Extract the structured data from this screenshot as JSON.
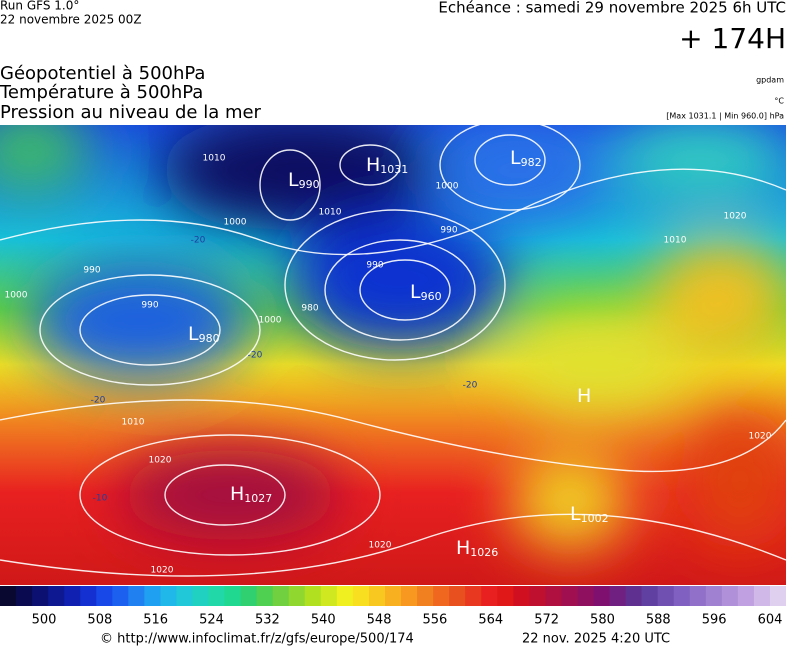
{
  "header": {
    "run": "Run GFS 1.0°",
    "run_date": "22 novembre 2025 00Z",
    "valid": "Echéance : samedi 29 novembre 2025 6h UTC",
    "lead": "+ 174H"
  },
  "fields": [
    "Géopotentiel à 500hPa",
    "Température à 500hPa",
    "Pression au niveau de la mer"
  ],
  "units": {
    "geo": "gpdam",
    "temp": "°C",
    "pressure": "[Max 1031.1 | Min 960.0] hPa"
  },
  "centers": [
    {
      "letter": "L",
      "value": "990"
    },
    {
      "letter": "H",
      "value": "1031"
    },
    {
      "letter": "L",
      "value": "982"
    },
    {
      "letter": "L",
      "value": "960"
    },
    {
      "letter": "L",
      "value": "980"
    },
    {
      "letter": "H",
      "value": "1027"
    },
    {
      "letter": "H",
      "value": "1026"
    },
    {
      "letter": "L",
      "value": "1002"
    },
    {
      "letter": "H"
    }
  ],
  "isobar_labels": [
    "1010",
    "1000",
    "990",
    "1010",
    "1000",
    "990",
    "980",
    "990",
    "1000",
    "1010",
    "1020",
    "1020",
    "1020",
    "1020",
    "1010",
    "1020",
    "1000",
    "990"
  ],
  "temp_labels": [
    "-20",
    "-20",
    "-20",
    "-20",
    "-10"
  ],
  "colorbar": [
    "500",
    "508",
    "516",
    "524",
    "532",
    "540",
    "548",
    "556",
    "564",
    "572",
    "580",
    "588",
    "596",
    "604"
  ],
  "footer": {
    "url": "© http://www.infoclimat.fr/z/gfs/europe/500/174",
    "date": "22 nov. 2025  4:20 UTC"
  }
}
